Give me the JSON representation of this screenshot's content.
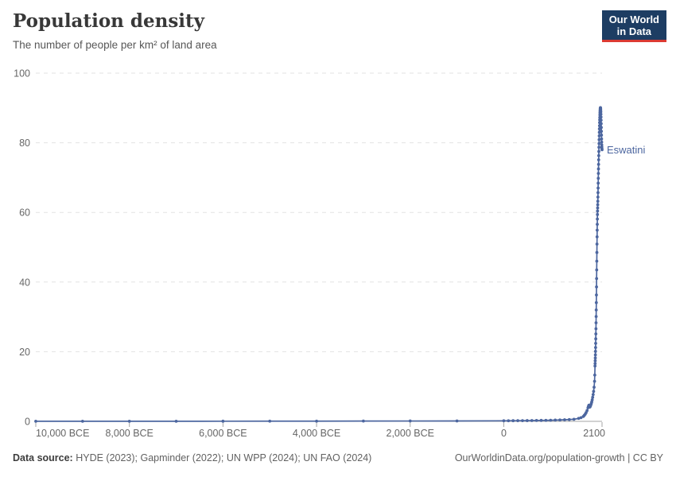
{
  "header": {
    "title": "Population density",
    "subtitle": "The number of people per km² of land area"
  },
  "logo": {
    "line1": "Our World",
    "line2": "in Data",
    "bg_color": "#1d3d63",
    "accent_color": "#dc3a32"
  },
  "footer": {
    "source_label": "Data source:",
    "source_text": " HYDE (2023); Gapminder (2022); UN WPP (2024); UN FAO (2024)",
    "credit": "OurWorldinData.org/population-growth | CC BY"
  },
  "colors": {
    "line": "#4c669f",
    "grid": "#e3e3e3",
    "axis": "#a6a6a6",
    "tick_text": "#666666"
  },
  "chart_data": {
    "type": "line",
    "title": "Population density",
    "subtitle": "The number of people per km² of land area",
    "xlabel": "",
    "ylabel": "",
    "xlim": [
      -10000,
      2100
    ],
    "ylim": [
      0,
      100
    ],
    "grid": "dashed-horizontal",
    "legend": "inline-end-label",
    "x_ticks": [
      {
        "value": -10000,
        "label": "10,000 BCE"
      },
      {
        "value": -8000,
        "label": "8,000 BCE"
      },
      {
        "value": -6000,
        "label": "6,000 BCE"
      },
      {
        "value": -4000,
        "label": "4,000 BCE"
      },
      {
        "value": -2000,
        "label": "2,000 BCE"
      },
      {
        "value": 0,
        "label": "0"
      },
      {
        "value": 2100,
        "label": "2100"
      }
    ],
    "y_ticks": [
      0,
      20,
      40,
      60,
      80,
      100
    ],
    "series": [
      {
        "name": "Eswatini",
        "end_label": "Eswatini",
        "color": "#4c669f",
        "points": [
          [
            -10000,
            0.02
          ],
          [
            -9000,
            0.02
          ],
          [
            -8000,
            0.03
          ],
          [
            -7000,
            0.03
          ],
          [
            -6000,
            0.04
          ],
          [
            -5000,
            0.05
          ],
          [
            -4000,
            0.06
          ],
          [
            -3000,
            0.08
          ],
          [
            -2000,
            0.1
          ],
          [
            -1000,
            0.12
          ],
          [
            0,
            0.16
          ],
          [
            100,
            0.17
          ],
          [
            200,
            0.18
          ],
          [
            300,
            0.19
          ],
          [
            400,
            0.2
          ],
          [
            500,
            0.21
          ],
          [
            600,
            0.23
          ],
          [
            700,
            0.25
          ],
          [
            800,
            0.27
          ],
          [
            900,
            0.29
          ],
          [
            1000,
            0.32
          ],
          [
            1100,
            0.36
          ],
          [
            1200,
            0.4
          ],
          [
            1300,
            0.45
          ],
          [
            1400,
            0.52
          ],
          [
            1500,
            0.6
          ],
          [
            1600,
            0.85
          ],
          [
            1650,
            1.05
          ],
          [
            1700,
            1.4
          ],
          [
            1720,
            1.7
          ],
          [
            1740,
            2.05
          ],
          [
            1760,
            2.5
          ],
          [
            1780,
            3.1
          ],
          [
            1800,
            3.9
          ],
          [
            1810,
            4.3
          ],
          [
            1820,
            4.65
          ],
          [
            1830,
            4.25
          ],
          [
            1840,
            4.1
          ],
          [
            1850,
            4.35
          ],
          [
            1860,
            4.7
          ],
          [
            1870,
            5.1
          ],
          [
            1880,
            5.6
          ],
          [
            1890,
            6.2
          ],
          [
            1900,
            6.9
          ],
          [
            1910,
            7.7
          ],
          [
            1920,
            8.6
          ],
          [
            1930,
            9.8
          ],
          [
            1940,
            11.5
          ],
          [
            1945,
            13.3
          ],
          [
            1950,
            15.9
          ],
          [
            1952,
            16.6
          ],
          [
            1954,
            17.4
          ],
          [
            1956,
            18.2
          ],
          [
            1958,
            19.1
          ],
          [
            1960,
            20.1
          ],
          [
            1962,
            21.2
          ],
          [
            1964,
            22.4
          ],
          [
            1966,
            23.7
          ],
          [
            1968,
            25.1
          ],
          [
            1970,
            26.6
          ],
          [
            1972,
            28.3
          ],
          [
            1974,
            30.1
          ],
          [
            1976,
            32.0
          ],
          [
            1978,
            34.1
          ],
          [
            1980,
            36.3
          ],
          [
            1982,
            38.6
          ],
          [
            1984,
            41.0
          ],
          [
            1986,
            43.5
          ],
          [
            1988,
            46.0
          ],
          [
            1990,
            48.5
          ],
          [
            1992,
            50.9
          ],
          [
            1994,
            53.0
          ],
          [
            1996,
            54.9
          ],
          [
            1998,
            56.6
          ],
          [
            2000,
            58.1
          ],
          [
            2002,
            59.4
          ],
          [
            2004,
            60.4
          ],
          [
            2006,
            61.3
          ],
          [
            2008,
            62.2
          ],
          [
            2010,
            63.2
          ],
          [
            2012,
            64.4
          ],
          [
            2014,
            65.7
          ],
          [
            2016,
            67.0
          ],
          [
            2018,
            68.4
          ],
          [
            2020,
            69.8
          ],
          [
            2022,
            71.2
          ],
          [
            2024,
            72.5
          ],
          [
            2026,
            73.8
          ],
          [
            2028,
            75.1
          ],
          [
            2030,
            76.3
          ],
          [
            2032,
            77.5
          ],
          [
            2034,
            78.7
          ],
          [
            2036,
            79.8
          ],
          [
            2038,
            80.9
          ],
          [
            2040,
            82.0
          ],
          [
            2042,
            83.0
          ],
          [
            2044,
            84.0
          ],
          [
            2046,
            84.9
          ],
          [
            2048,
            85.8
          ],
          [
            2050,
            86.6
          ],
          [
            2052,
            87.3
          ],
          [
            2054,
            88.0
          ],
          [
            2056,
            88.6
          ],
          [
            2058,
            89.1
          ],
          [
            2060,
            89.5
          ],
          [
            2062,
            89.8
          ],
          [
            2064,
            90.0
          ],
          [
            2066,
            90.1
          ],
          [
            2068,
            90.0
          ],
          [
            2070,
            89.8
          ],
          [
            2072,
            89.4
          ],
          [
            2074,
            88.9
          ],
          [
            2076,
            88.2
          ],
          [
            2078,
            87.4
          ],
          [
            2080,
            86.5
          ],
          [
            2082,
            85.5
          ],
          [
            2084,
            84.4
          ],
          [
            2086,
            83.3
          ],
          [
            2088,
            82.2
          ],
          [
            2090,
            81.1
          ],
          [
            2092,
            80.2
          ],
          [
            2094,
            79.4
          ],
          [
            2096,
            78.8
          ],
          [
            2098,
            78.3
          ],
          [
            2100,
            78.0
          ]
        ]
      }
    ]
  }
}
